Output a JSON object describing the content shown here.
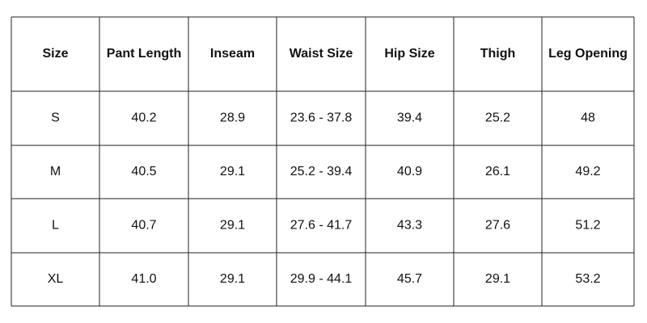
{
  "table": {
    "headers": [
      "Size",
      "Pant Length",
      "Inseam",
      "Waist Size",
      "Hip Size",
      "Thigh",
      "Leg Opening"
    ],
    "rows": [
      [
        "S",
        "40.2",
        "28.9",
        "23.6 - 37.8",
        "39.4",
        "25.2",
        "48"
      ],
      [
        "M",
        "40.5",
        "29.1",
        "25.2 - 39.4",
        "40.9",
        "26.1",
        "49.2"
      ],
      [
        "L",
        "40.7",
        "29.1",
        "27.6 - 41.7",
        "43.3",
        "27.6",
        "51.2"
      ],
      [
        "XL",
        "41.0",
        "29.1",
        "29.9 - 44.1",
        "45.7",
        "29.1",
        "53.2"
      ]
    ]
  }
}
